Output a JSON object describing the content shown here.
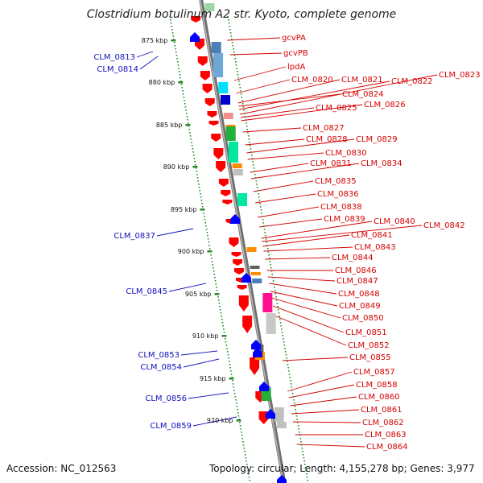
{
  "title": "Clostridium botulinum A2 str. Kyoto, complete genome",
  "footer": {
    "accession": "Accession: NC_012563",
    "summary": "Topology: circular; Length: 4,155,278 bp; Genes: 3,977"
  },
  "colors": {
    "forward_label": "#d40000",
    "reverse_label": "#1010c0",
    "gene_forward": "#ff0000",
    "gene_reverse": "#0000ff",
    "backbone": "#909090",
    "tick": "#2a8a2a"
  },
  "ticks": [
    "875 kbp",
    "880 kbp",
    "885 kbp",
    "890 kbp",
    "895 kbp",
    "900 kbp",
    "905 kbp",
    "910 kbp",
    "915 kbp",
    "920 kbp"
  ],
  "forward_labels": [
    "gcvPA",
    "gcvPB",
    "lpdA",
    "CLM_0820",
    "CLM_0821",
    "CLM_0822",
    "CLM_0823",
    "CLM_0824",
    "CLM_0825",
    "CLM_0826",
    "CLM_0827",
    "CLM_0828",
    "CLM_0829",
    "CLM_0830",
    "CLM_0831",
    "CLM_0834",
    "CLM_0835",
    "CLM_0836",
    "CLM_0838",
    "CLM_0839",
    "CLM_0840",
    "CLM_0842",
    "CLM_0841",
    "CLM_0843",
    "CLM_0844",
    "CLM_0846",
    "CLM_0847",
    "CLM_0848",
    "CLM_0849",
    "CLM_0850",
    "CLM_0851",
    "CLM_0852",
    "CLM_0855",
    "CLM_0857",
    "CLM_0858",
    "CLM_0860",
    "CLM_0861",
    "CLM_0862",
    "CLM_0863",
    "CLM_0864"
  ],
  "reverse_labels": [
    "CLM_0813",
    "CLM_0814",
    "CLM_0837",
    "CLM_0845",
    "CLM_0853",
    "CLM_0854",
    "CLM_0856",
    "CLM_0859"
  ]
}
